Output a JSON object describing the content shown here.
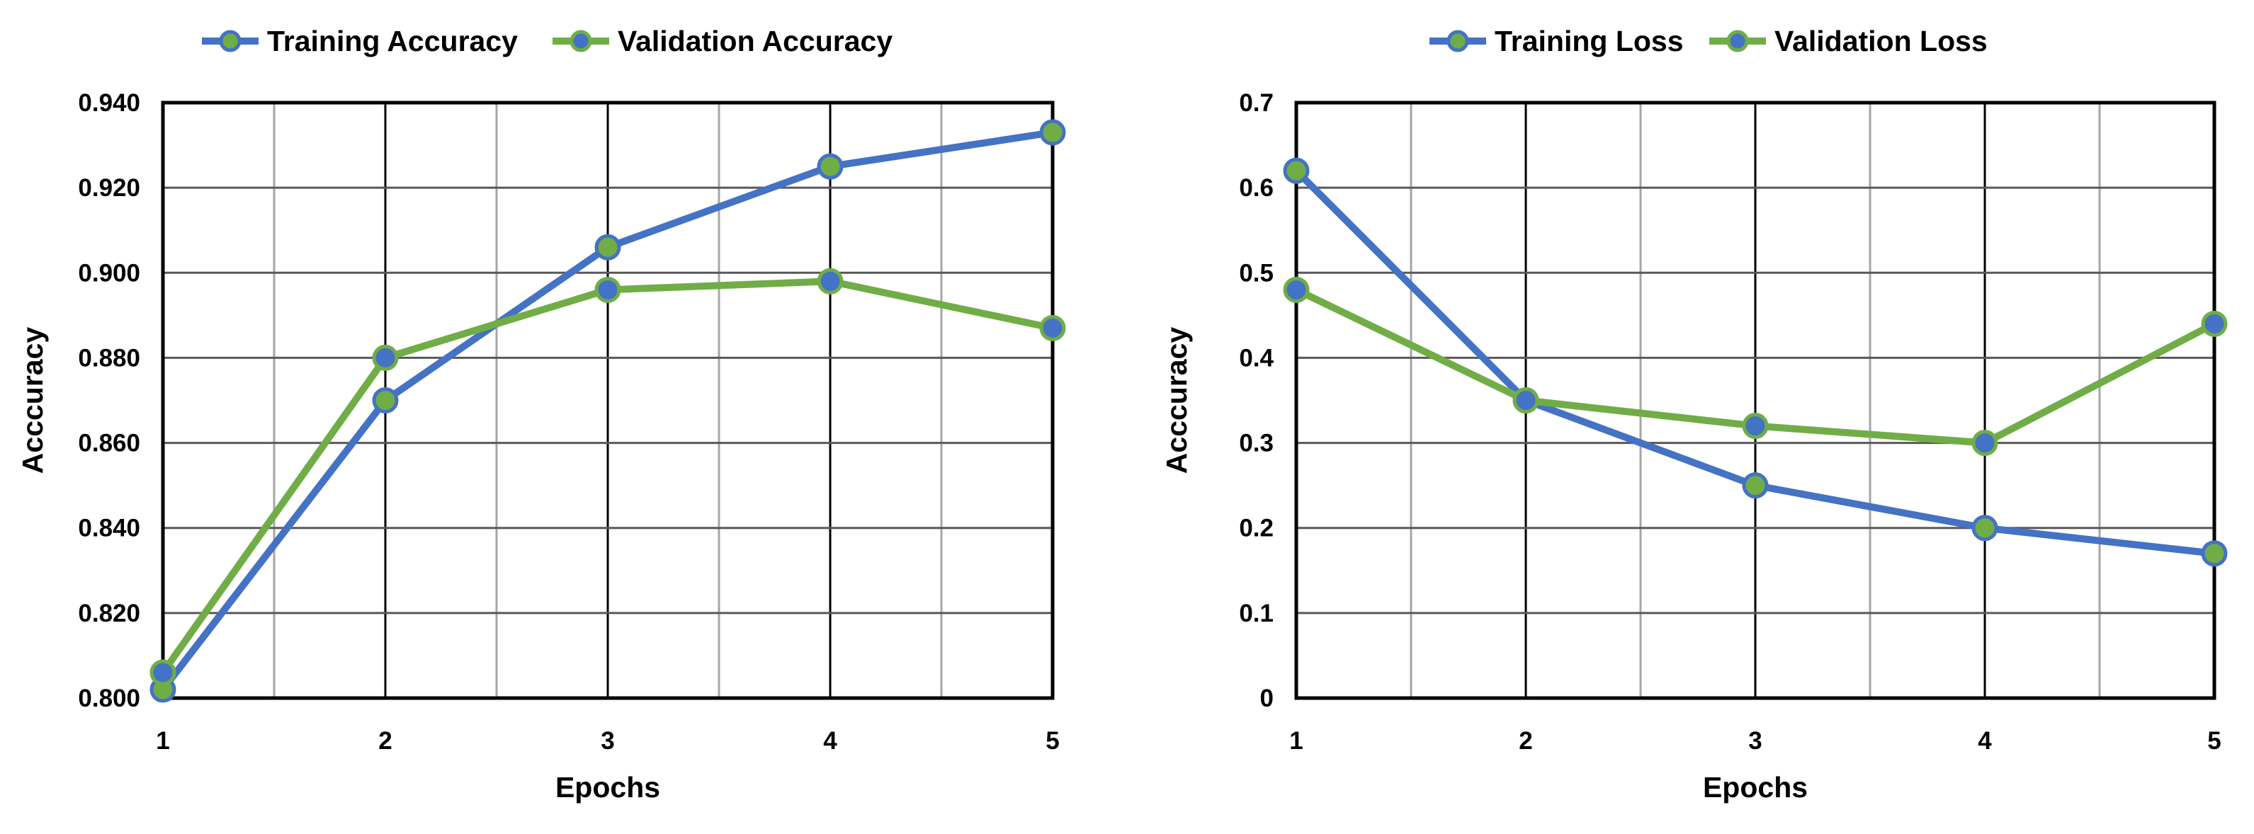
{
  "chart_data": [
    {
      "type": "line",
      "xlabel": "Epochs",
      "ylabel": "Acccuracy",
      "x": [
        1,
        2,
        3,
        4,
        5
      ],
      "xticks": [
        "1",
        "2",
        "3",
        "4",
        "5"
      ],
      "ylim": [
        0.8,
        0.94
      ],
      "yticks": [
        "0.800",
        "0.820",
        "0.840",
        "0.860",
        "0.880",
        "0.900",
        "0.920",
        "0.940"
      ],
      "grid": true,
      "legend_position": "top",
      "series": [
        {
          "name": "Training Accuracy",
          "values": [
            0.802,
            0.87,
            0.906,
            0.925,
            0.933
          ],
          "color": "#4472C4",
          "marker_color": "#70AD47"
        },
        {
          "name": "Validation Accuracy",
          "values": [
            0.806,
            0.88,
            0.896,
            0.898,
            0.887
          ],
          "color": "#70AD47",
          "marker_color": "#4472C4"
        }
      ]
    },
    {
      "type": "line",
      "xlabel": "Epochs",
      "ylabel": "Acccuracy",
      "x": [
        1,
        2,
        3,
        4,
        5
      ],
      "xticks": [
        "1",
        "2",
        "3",
        "4",
        "5"
      ],
      "ylim": [
        0,
        0.7
      ],
      "yticks": [
        "0",
        "0.1",
        "0.2",
        "0.3",
        "0.4",
        "0.5",
        "0.6",
        "0.7"
      ],
      "grid": true,
      "legend_position": "top",
      "series": [
        {
          "name": "Training Loss",
          "values": [
            0.62,
            0.35,
            0.25,
            0.2,
            0.17
          ],
          "color": "#4472C4",
          "marker_color": "#70AD47"
        },
        {
          "name": "Validation Loss",
          "values": [
            0.48,
            0.35,
            0.32,
            0.3,
            0.44
          ],
          "color": "#70AD47",
          "marker_color": "#4472C4"
        }
      ]
    }
  ]
}
